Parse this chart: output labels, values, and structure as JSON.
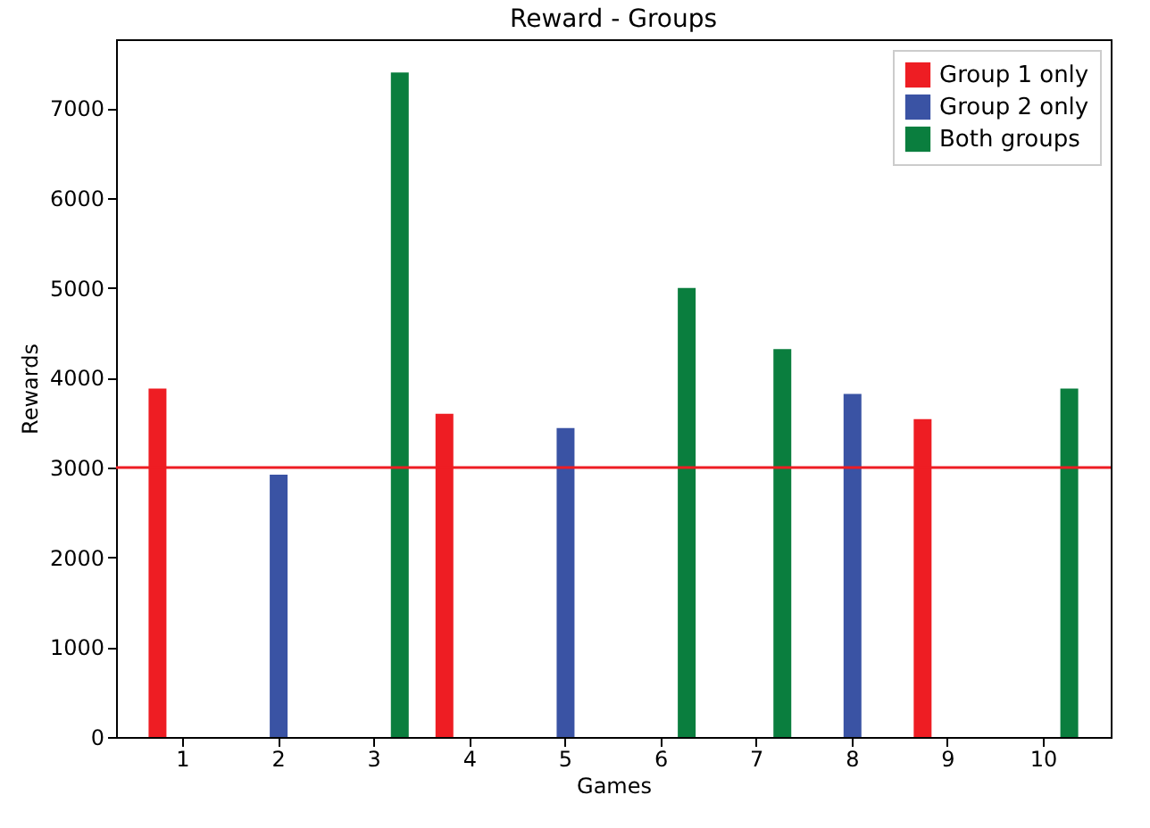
{
  "chart_data": {
    "type": "bar",
    "title": "Reward - Groups",
    "xlabel": "Games",
    "ylabel": "Rewards",
    "categories": [
      "1",
      "2",
      "3",
      "4",
      "5",
      "6",
      "7",
      "8",
      "9",
      "10"
    ],
    "series": [
      {
        "name": "Group 1 only",
        "color": "#ee1d23",
        "values": [
          3880,
          null,
          null,
          3600,
          null,
          null,
          null,
          null,
          3540,
          null
        ]
      },
      {
        "name": "Group 2 only",
        "color": "#3a53a4",
        "values": [
          null,
          2920,
          null,
          null,
          3440,
          null,
          null,
          3820,
          null,
          null
        ]
      },
      {
        "name": "Both groups",
        "color": "#0a7e3e",
        "values": [
          null,
          null,
          7400,
          null,
          null,
          5000,
          4320,
          null,
          null,
          3880
        ]
      }
    ],
    "ylim": [
      0,
      7770
    ],
    "yticks": [
      0,
      1000,
      2000,
      3000,
      4000,
      5000,
      6000,
      7000
    ],
    "ref_lines": [
      {
        "axis": "y",
        "value": 3000,
        "color": "#ee1d23"
      }
    ],
    "grid": false,
    "legend": "top right"
  }
}
